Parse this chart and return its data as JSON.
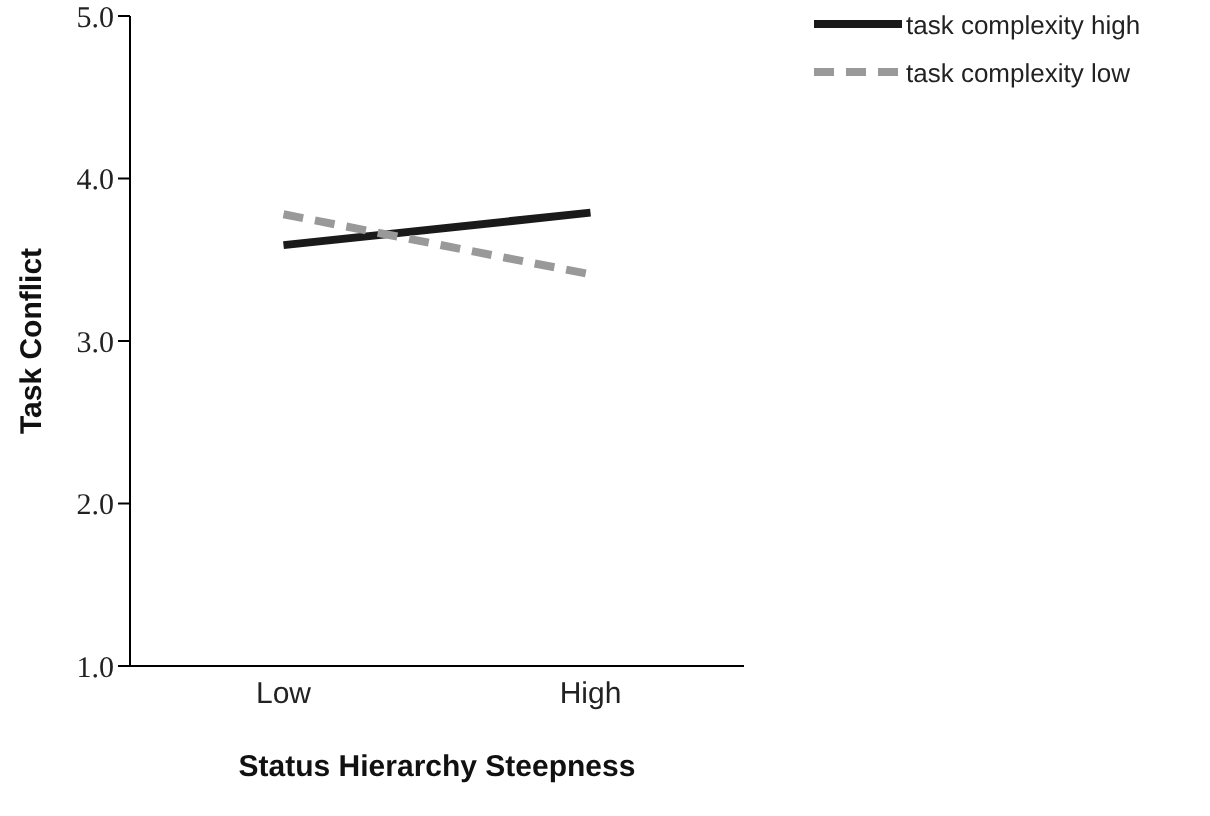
{
  "chart_data": {
    "type": "line",
    "xlabel": "Status Hierarchy Steepness",
    "ylabel": "Task Conflict",
    "categories": [
      "Low",
      "High"
    ],
    "series": [
      {
        "name": "task complexity high",
        "color": "#1a1a1a",
        "values": [
          3.59,
          3.79
        ],
        "line_style": "solid"
      },
      {
        "name": "task complexity low",
        "color": "#999999",
        "values": [
          3.78,
          3.41
        ],
        "line_style": "dashed"
      }
    ],
    "ylim": [
      1.0,
      5.0
    ],
    "yticks": [
      {
        "value": 1,
        "label": "1.0"
      },
      {
        "value": 2,
        "label": "2.0"
      },
      {
        "value": 3,
        "label": "3.0"
      },
      {
        "value": 4,
        "label": "4.0"
      },
      {
        "value": 5,
        "label": "5.0"
      }
    ],
    "grid": false,
    "legend": "top right",
    "marker": "none"
  }
}
